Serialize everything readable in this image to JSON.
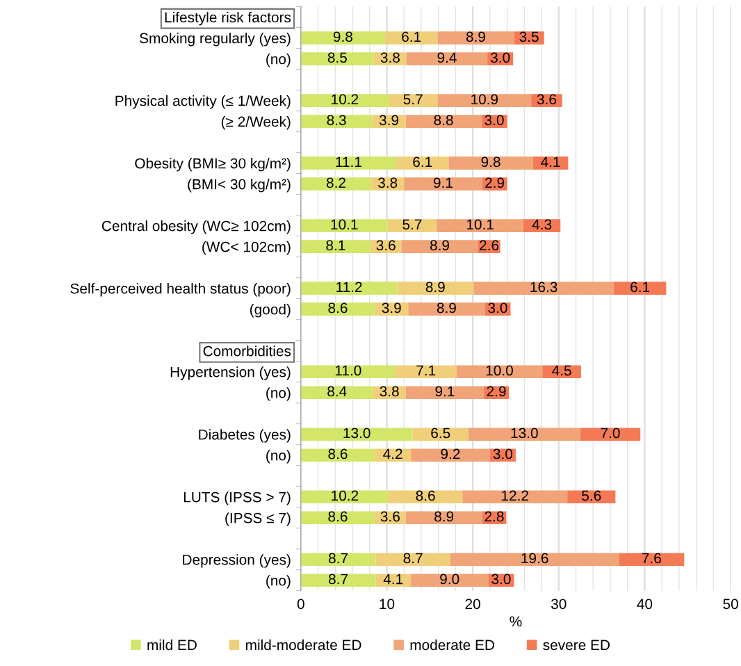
{
  "chart_data": {
    "type": "bar",
    "orientation": "horizontal",
    "stacked": true,
    "xlabel": "%",
    "xlim": [
      0,
      50
    ],
    "xticks": [
      0,
      {
        "value": 2,
        "label": null
      },
      {
        "value": 4,
        "label": null
      },
      {
        "value": 6,
        "label": null
      },
      {
        "value": 8,
        "label": null
      },
      10,
      {
        "value": 12,
        "label": null
      },
      {
        "value": 14,
        "label": null
      },
      {
        "value": 16,
        "label": null
      },
      {
        "value": 18,
        "label": null
      },
      20,
      {
        "value": 22,
        "label": null
      },
      {
        "value": 24,
        "label": null
      },
      {
        "value": 26,
        "label": null
      },
      {
        "value": 28,
        "label": null
      },
      30,
      {
        "value": 32,
        "label": null
      },
      {
        "value": 34,
        "label": null
      },
      {
        "value": 36,
        "label": null
      },
      {
        "value": 38,
        "label": null
      },
      40,
      {
        "value": 42,
        "label": null
      },
      {
        "value": 44,
        "label": null
      },
      {
        "value": 46,
        "label": null
      },
      {
        "value": 48,
        "label": null
      },
      50
    ],
    "grid": "x",
    "legend": "bottom",
    "categories": [
      "Lifestyle risk factors",
      "Smoking regularly (yes)",
      "(no)",
      null,
      "Physical activity (≤ 1/Week)",
      "(≥ 2/Week)",
      null,
      "Obesity (BMI≥ 30 kg/m²)",
      "(BMI< 30 kg/m²)",
      null,
      "Central obesity (WC≥ 102cm)",
      "(WC< 102cm)",
      null,
      "Self-perceived health status (poor)",
      "(good)",
      null,
      "Comorbidities",
      "Hypertension (yes)",
      "(no)",
      null,
      "Diabetes (yes)",
      "(no)",
      null,
      "LUTS (IPSS > 7)",
      "(IPSS ≤ 7)",
      null,
      "Depression (yes)",
      "(no)"
    ],
    "series": [
      {
        "name": "mild ED",
        "color": "#d4e66a",
        "values": [
          null,
          9.8,
          8.5,
          null,
          10.2,
          8.3,
          null,
          11.1,
          8.2,
          null,
          10.1,
          8.1,
          null,
          11.2,
          8.6,
          null,
          null,
          11.0,
          8.4,
          null,
          13.0,
          8.6,
          null,
          10.2,
          8.6,
          null,
          8.7,
          8.7
        ],
        "value_labels": [
          null,
          "9.8",
          "8.5",
          null,
          "10.2",
          "8.3",
          null,
          "11.1",
          "8.2",
          null,
          "10.1",
          "8.1",
          null,
          "11.2",
          "8.6",
          null,
          null,
          "11.0",
          "8.4",
          null,
          "13.0",
          "8.6",
          null,
          "10.2",
          "8.6",
          null,
          "8.7",
          "8.7"
        ]
      },
      {
        "name": "mild-moderate ED",
        "color": "#f0cf7a",
        "values": [
          null,
          6.1,
          3.8,
          null,
          5.7,
          3.9,
          null,
          6.1,
          3.8,
          null,
          5.7,
          3.6,
          null,
          8.9,
          3.9,
          null,
          null,
          7.1,
          3.8,
          null,
          6.5,
          4.2,
          null,
          8.6,
          3.6,
          null,
          8.7,
          4.1
        ],
        "value_labels": [
          null,
          "6.1",
          "3.8",
          null,
          "5.7",
          "3.9",
          null,
          "6.1",
          "3.8",
          null,
          "5.7",
          "3.6",
          null,
          "8.9",
          "3.9",
          null,
          null,
          "7.1",
          "3.8",
          null,
          "6.5",
          "4.2",
          null,
          "8.6",
          "3.6",
          null,
          "8.7",
          "4.1"
        ]
      },
      {
        "name": "moderate ED",
        "color": "#f0a478",
        "values": [
          null,
          8.9,
          9.4,
          null,
          10.9,
          8.8,
          null,
          9.8,
          9.1,
          null,
          10.1,
          8.9,
          null,
          16.3,
          8.9,
          null,
          null,
          10.0,
          9.1,
          null,
          13.0,
          9.2,
          null,
          12.2,
          8.9,
          null,
          19.6,
          9.0
        ],
        "value_labels": [
          null,
          "8.9",
          "9.4",
          null,
          "10.9",
          "8.8",
          null,
          "9.8",
          "9.1",
          null,
          "10.1",
          "8.9",
          null,
          "16.3",
          "8.9",
          null,
          null,
          "10.0",
          "9.1",
          null,
          "13.0",
          "9.2",
          null,
          "12.2",
          "8.9",
          null,
          "19.6",
          "9.0"
        ]
      },
      {
        "name": "severe ED",
        "color": "#f47a55",
        "values": [
          null,
          3.5,
          3.0,
          null,
          3.6,
          3.0,
          null,
          4.1,
          2.9,
          null,
          4.3,
          2.6,
          null,
          6.1,
          3.0,
          null,
          null,
          4.5,
          2.9,
          null,
          7.0,
          3.0,
          null,
          5.6,
          2.8,
          null,
          7.6,
          3.0
        ],
        "value_labels": [
          null,
          "3.5",
          "3.0",
          null,
          "3.6",
          "3.0",
          null,
          "4.1",
          "2.9",
          null,
          "4.3",
          "2.6",
          null,
          "6.1",
          "3.0",
          null,
          null,
          "4.5",
          "2.9",
          null,
          "7.0",
          "3.0",
          null,
          "5.6",
          "2.8",
          null,
          "7.6",
          "3.0"
        ]
      }
    ]
  }
}
